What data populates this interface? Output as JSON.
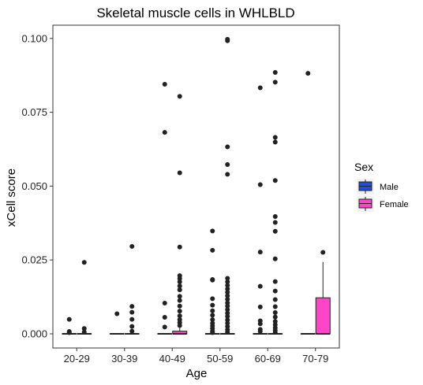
{
  "chart_data": {
    "type": "boxplot",
    "title": "Skeletal muscle cells in WHLBLD",
    "xlabel": "Age",
    "ylabel": "xCell score",
    "categories": [
      "20-29",
      "30-39",
      "40-49",
      "50-59",
      "60-69",
      "70-79"
    ],
    "y_ticks": [
      0.0,
      0.025,
      0.05,
      0.075,
      0.1
    ],
    "y_tick_labels": [
      "0.000",
      "0.025",
      "0.050",
      "0.075",
      "0.100"
    ],
    "ylim": [
      -0.003,
      0.1
    ],
    "grid": false,
    "legend": {
      "title": "Sex",
      "position": "right",
      "entries": [
        {
          "label": "Male",
          "color": "#1f4fe0"
        },
        {
          "label": "Female",
          "color": "#ff44c8"
        }
      ]
    },
    "series": [
      {
        "name": "Male",
        "color": "#1f4fe0",
        "boxes": [
          {
            "category": "20-29",
            "q1": 0,
            "median": 0,
            "q3": 0,
            "whisker_low": 0,
            "whisker_high": 0,
            "outliers": [
              0.0049,
              0.0008,
              0.0004
            ]
          },
          {
            "category": "30-39",
            "q1": 0,
            "median": 0,
            "q3": 0,
            "whisker_low": 0,
            "whisker_high": 0,
            "outliers": [
              0.0068
            ]
          },
          {
            "category": "40-49",
            "q1": 0,
            "median": 0,
            "q3": 0,
            "whisker_low": 0,
            "whisker_high": 0,
            "outliers": [
              0.0845,
              0.0682,
              0.0104,
              0.0056,
              0.0023
            ]
          },
          {
            "category": "50-59",
            "q1": 0,
            "median": 0,
            "q3": 0,
            "whisker_low": 0,
            "whisker_high": 0,
            "outliers": [
              0.0348,
              0.0283,
              0.0184,
              0.0182,
              0.0119,
              0.0097,
              0.0078,
              0.0063,
              0.0048,
              0.0036,
              0.0027,
              0.0018,
              0.0009,
              0.0004
            ]
          },
          {
            "category": "60-69",
            "q1": 0,
            "median": 0,
            "q3": 0,
            "whisker_low": 0,
            "whisker_high": 0,
            "outliers": [
              0.0833,
              0.0505,
              0.0277,
              0.0161,
              0.0091,
              0.0044,
              0.0034,
              0.0015,
              0.0008
            ]
          },
          {
            "category": "70-79",
            "q1": 0,
            "median": 0,
            "q3": 0,
            "whisker_low": 0,
            "whisker_high": 0,
            "outliers": [
              0.0882
            ]
          }
        ]
      },
      {
        "name": "Female",
        "color": "#ff44c8",
        "boxes": [
          {
            "category": "20-29",
            "q1": 0,
            "median": 0,
            "q3": 0,
            "whisker_low": 0,
            "whisker_high": 0,
            "outliers": [
              0.0242,
              0.0018,
              0.0006
            ]
          },
          {
            "category": "30-39",
            "q1": 0,
            "median": 0,
            "q3": 0,
            "whisker_low": 0,
            "whisker_high": 0,
            "outliers": [
              0.0296,
              0.0093,
              0.0073,
              0.0049,
              0.0025,
              0.0009
            ]
          },
          {
            "category": "40-49",
            "q1": 0,
            "median": 0,
            "q3": 0.0009,
            "whisker_low": 0,
            "whisker_high": 0.002,
            "outliers": [
              0.0804,
              0.0545,
              0.0294,
              0.0197,
              0.0187,
              0.0176,
              0.0162,
              0.0149,
              0.0127,
              0.0113,
              0.0094,
              0.0077,
              0.0061,
              0.0048,
              0.0038,
              0.0028
            ]
          },
          {
            "category": "50-59",
            "q1": 0,
            "median": 0,
            "q3": 0,
            "whisker_low": 0,
            "whisker_high": 0,
            "outliers": [
              0.0997,
              0.0992,
              0.0633,
              0.0573,
              0.054,
              0.0188,
              0.0176,
              0.0164,
              0.0152,
              0.0141,
              0.0129,
              0.0117,
              0.0105,
              0.0094,
              0.0082,
              0.007,
              0.0059,
              0.0047,
              0.0036,
              0.0025,
              0.0014,
              0.0006
            ]
          },
          {
            "category": "60-69",
            "q1": 0,
            "median": 0,
            "q3": 0,
            "whisker_low": 0,
            "whisker_high": 0,
            "outliers": [
              0.0885,
              0.0852,
              0.0665,
              0.0649,
              0.0519,
              0.0397,
              0.0377,
              0.0347,
              0.0254,
              0.0177,
              0.0145,
              0.0116,
              0.0092,
              0.0072,
              0.0057,
              0.0042,
              0.0031,
              0.0021,
              0.0012,
              0.0005
            ]
          },
          {
            "category": "70-79",
            "q1": 0,
            "median": 0,
            "q3": 0.0122,
            "whisker_low": 0,
            "whisker_high": 0.0243,
            "outliers": [
              0.0276
            ]
          }
        ]
      }
    ]
  }
}
